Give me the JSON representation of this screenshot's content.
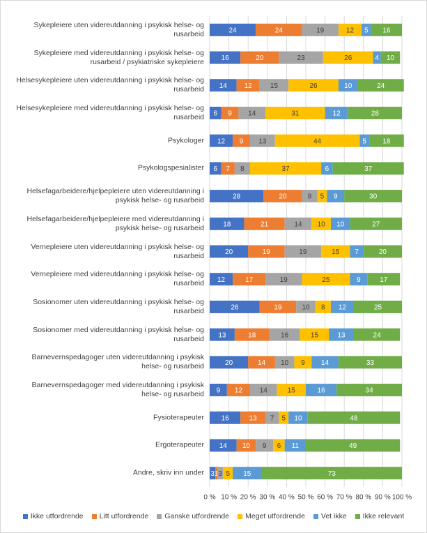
{
  "chart_data": {
    "type": "stacked_bar_horizontal",
    "categories": [
      "Sykepleiere uten videreutdanning i psykisk helse- og rusarbeid",
      "Sykepleiere med videreutdanning i psykisk helse- og rusarbeid / psykiatriske sykepleiere",
      "Helsesykepleiere uten videreutdanning i psykisk helse- og rusarbeid",
      "Helsesykepleiere med videreutdanning i psykisk helse- og rusarbeid",
      "Psykologer",
      "Psykologspesialister",
      "Helsefagarbeidere/hjelpepleiere uten videreutdanning i psykisk helse- og rusarbeid",
      "Helsefagarbeidere/hjelpepleiere med videreutdanning i psykisk helse- og rusarbeid",
      "Vernepleiere uten videreutdanning i psykisk helse- og rusarbeid",
      "Vernepleiere med videreutdanning i psykisk helse- og rusarbeid",
      "Sosionomer uten videreutdanning i psykisk helse- og rusarbeid",
      "Sosionomer med videreutdanning i psykisk helse- og rusarbeid",
      "Barnevernspedagoger uten videreutdanning i psykisk helse- og rusarbeid",
      "Barnevernspedagoger med videreutdanning i psykisk helse- og rusarbeid",
      "Fysioterapeuter",
      "Ergoterapeuter",
      "Andre, skriv inn under"
    ],
    "series": [
      {
        "name": "Ikke utfordrende",
        "color": "#4472c4",
        "values": [
          24,
          16,
          14,
          6,
          12,
          6,
          28,
          18,
          20,
          12,
          26,
          13,
          20,
          9,
          16,
          14,
          3
        ]
      },
      {
        "name": "Litt utfordrende",
        "color": "#ed7d31",
        "values": [
          24,
          20,
          12,
          9,
          9,
          7,
          20,
          21,
          19,
          17,
          19,
          18,
          14,
          12,
          13,
          10,
          1
        ]
      },
      {
        "name": "Ganske utfordrende",
        "color": "#a5a5a5",
        "values": [
          19,
          23,
          15,
          14,
          13,
          8,
          8,
          14,
          19,
          19,
          10,
          16,
          10,
          14,
          7,
          9,
          3
        ]
      },
      {
        "name": "Meget utfordrende",
        "color": "#ffc000",
        "values": [
          12,
          26,
          26,
          31,
          44,
          37,
          5,
          10,
          15,
          25,
          8,
          15,
          9,
          15,
          5,
          6,
          5
        ]
      },
      {
        "name": "Vet ikke",
        "color": "#5b9bd5",
        "values": [
          5,
          4,
          10,
          12,
          5,
          6,
          9,
          10,
          7,
          9,
          12,
          13,
          14,
          16,
          10,
          11,
          15
        ]
      },
      {
        "name": "Ikke relevant",
        "color": "#70ad47",
        "values": [
          16,
          10,
          24,
          28,
          18,
          37,
          30,
          27,
          20,
          17,
          25,
          24,
          33,
          34,
          48,
          49,
          73
        ]
      }
    ],
    "xlim": [
      0,
      100
    ],
    "xticks": [
      {
        "value": 0,
        "label": "0 %"
      },
      {
        "value": 10,
        "label": "10 %"
      },
      {
        "value": 20,
        "label": "20 %"
      },
      {
        "value": 30,
        "label": "30 %"
      },
      {
        "value": 40,
        "label": "40 %"
      },
      {
        "value": 50,
        "label": "50 %"
      },
      {
        "value": 60,
        "label": "60 %"
      },
      {
        "value": 70,
        "label": "70 %"
      },
      {
        "value": 80,
        "label": "80 %"
      },
      {
        "value": 90,
        "label": "90 %"
      },
      {
        "value": 100,
        "label": "100 %"
      }
    ],
    "grid": true,
    "legend": "bottom"
  }
}
